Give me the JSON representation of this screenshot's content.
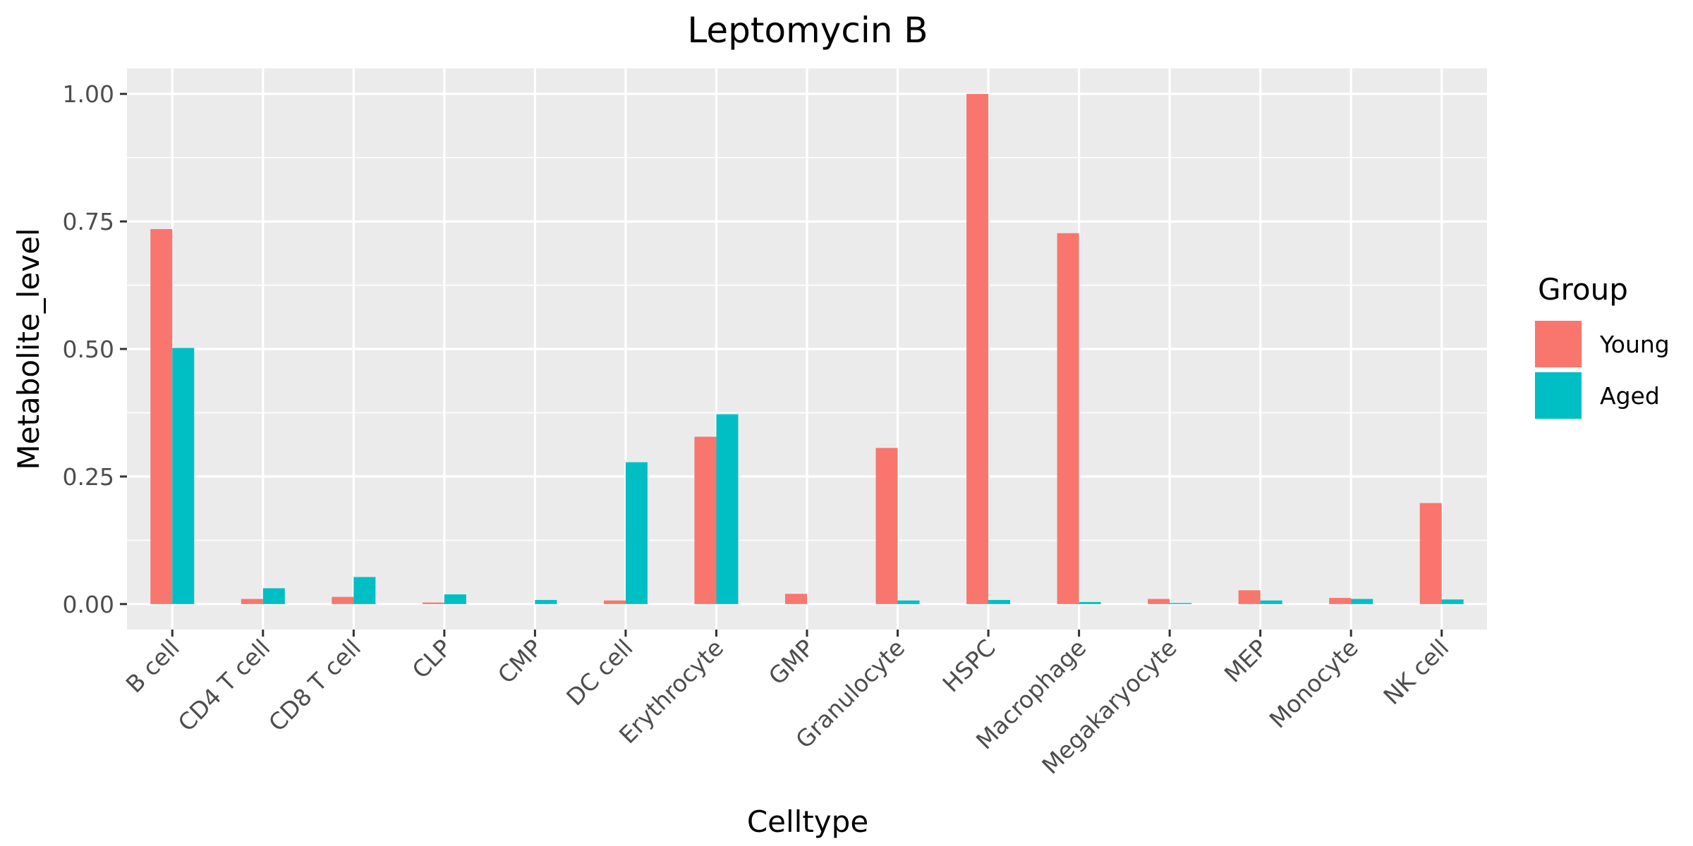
{
  "chart_data": {
    "type": "bar",
    "title": "Leptomycin B",
    "xlabel": "Celltype",
    "ylabel": "Metabolite_level",
    "categories": [
      "B cell",
      "CD4 T cell",
      "CD8 T cell",
      "CLP",
      "CMP",
      "DC cell",
      "Erythrocyte",
      "GMP",
      "Granulocyte",
      "HSPC",
      "Macrophage",
      "Megakaryocyte",
      "MEP",
      "Monocyte",
      "NK cell"
    ],
    "series": [
      {
        "name": "Young",
        "color": "#F8766D",
        "values": [
          0.735,
          0.01,
          0.014,
          0.003,
          0.0,
          0.007,
          0.328,
          0.02,
          0.306,
          1.0,
          0.727,
          0.01,
          0.027,
          0.012,
          0.198
        ]
      },
      {
        "name": "Aged",
        "color": "#00BFC4",
        "values": [
          0.502,
          0.031,
          0.053,
          0.019,
          0.008,
          0.278,
          0.372,
          0.0,
          0.007,
          0.008,
          0.004,
          0.002,
          0.007,
          0.01,
          0.009
        ]
      }
    ],
    "yticks": [
      "0.00",
      "0.25",
      "0.50",
      "0.75",
      "1.00"
    ],
    "ylim": [
      -0.05,
      1.05
    ],
    "grid": true,
    "legend": {
      "title": "Group",
      "placement": "right"
    },
    "panel_color": "#EBEBEB",
    "grid_color": "#FFFFFF"
  }
}
